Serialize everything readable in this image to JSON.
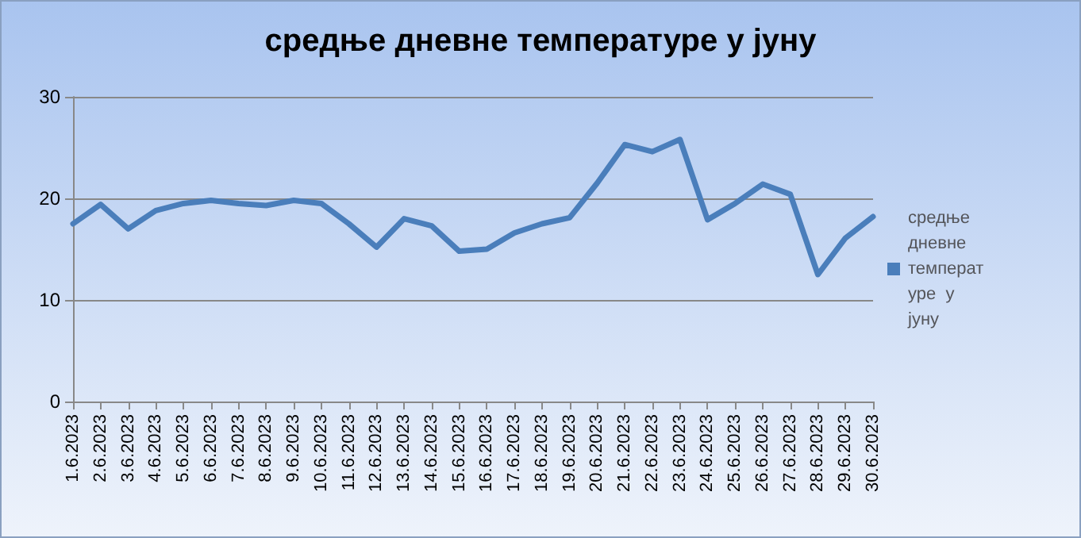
{
  "chart_data": {
    "type": "line",
    "title": "средње дневне температуре у јуну",
    "categories": [
      "1.6.2023",
      "2.6.2023",
      "3.6.2023",
      "4.6.2023",
      "5.6.2023",
      "6.6.2023",
      "7.6.2023",
      "8.6.2023",
      "9.6.2023",
      "10.6.2023",
      "11.6.2023",
      "12.6.2023",
      "13.6.2023",
      "14.6.2023",
      "15.6.2023",
      "16.6.2023",
      "17.6.2023",
      "18.6.2023",
      "19.6.2023",
      "20.6.2023",
      "21.6.2023",
      "22.6.2023",
      "23.6.2023",
      "24.6.2023",
      "25.6.2023",
      "26.6.2023",
      "27.6.2023",
      "28.6.2023",
      "29.6.2023",
      "30.6.2023"
    ],
    "series": [
      {
        "name": "средње дневне температуре  у јуну",
        "color": "#4a7ebb",
        "values": [
          17.5,
          19.4,
          17,
          18.8,
          19.5,
          19.8,
          19.5,
          19.3,
          19.8,
          19.5,
          17.5,
          15.2,
          18,
          17.3,
          14.8,
          15,
          16.6,
          17.5,
          18.1,
          21.5,
          25.3,
          24.6,
          25.8,
          17.9,
          19.5,
          21.4,
          20.4,
          12.5,
          16.1,
          18.2
        ]
      }
    ],
    "ylim": [
      0,
      30
    ],
    "yticks": [
      0,
      10,
      20,
      30
    ],
    "grid": "y",
    "legend": "right",
    "marker": "none",
    "line_style": "solid"
  }
}
